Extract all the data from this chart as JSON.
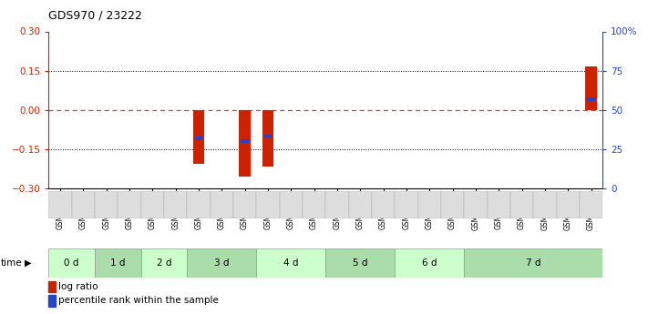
{
  "title": "GDS970 / 23222",
  "samples": [
    "GSM21882",
    "GSM21883",
    "GSM21884",
    "GSM21885",
    "GSM21886",
    "GSM21887",
    "GSM21888",
    "GSM21889",
    "GSM21890",
    "GSM21891",
    "GSM21892",
    "GSM21893",
    "GSM21894",
    "GSM21895",
    "GSM21896",
    "GSM21897",
    "GSM21898",
    "GSM21899",
    "GSM21900",
    "GSM21901",
    "GSM21902",
    "GSM21903",
    "GSM21904",
    "GSM21905"
  ],
  "log_ratio": [
    0,
    0,
    0,
    0,
    0,
    0,
    -0.205,
    0,
    -0.255,
    -0.215,
    0,
    0,
    0,
    0,
    0,
    0,
    0,
    0,
    0,
    0,
    0,
    0,
    0,
    0.165
  ],
  "percentile_rank_val": [
    0,
    0,
    0,
    0,
    0,
    0,
    32,
    0,
    30,
    33,
    0,
    0,
    0,
    0,
    0,
    0,
    0,
    0,
    0,
    0,
    0,
    0,
    0,
    57
  ],
  "ylim_left": [
    -0.3,
    0.3
  ],
  "ylim_right": [
    0,
    100
  ],
  "time_groups": [
    {
      "label": "0 d",
      "start": 0,
      "end": 2,
      "color": "#ccffcc"
    },
    {
      "label": "1 d",
      "start": 2,
      "end": 4,
      "color": "#aaddaa"
    },
    {
      "label": "2 d",
      "start": 4,
      "end": 6,
      "color": "#ccffcc"
    },
    {
      "label": "3 d",
      "start": 6,
      "end": 9,
      "color": "#aaddaa"
    },
    {
      "label": "4 d",
      "start": 9,
      "end": 12,
      "color": "#ccffcc"
    },
    {
      "label": "5 d",
      "start": 12,
      "end": 15,
      "color": "#aaddaa"
    },
    {
      "label": "6 d",
      "start": 15,
      "end": 18,
      "color": "#ccffcc"
    },
    {
      "label": "7 d",
      "start": 18,
      "end": 24,
      "color": "#aaddaa"
    }
  ],
  "hline_dotted": [
    0.15,
    -0.15
  ],
  "hline_zero_color": "#ee3333",
  "bar_color": "#cc2200",
  "percentile_color": "#2244cc",
  "bar_width": 0.5,
  "background_color": "#ffffff",
  "right_axis_color": "#2244cc",
  "left_axis_color": "#cc2200",
  "left_yticks": [
    -0.3,
    -0.15,
    0,
    0.15,
    0.3
  ],
  "right_yticks": [
    0,
    25,
    50,
    75,
    100
  ],
  "right_yticklabels": [
    "0",
    "25",
    "50",
    "75",
    "100%"
  ]
}
